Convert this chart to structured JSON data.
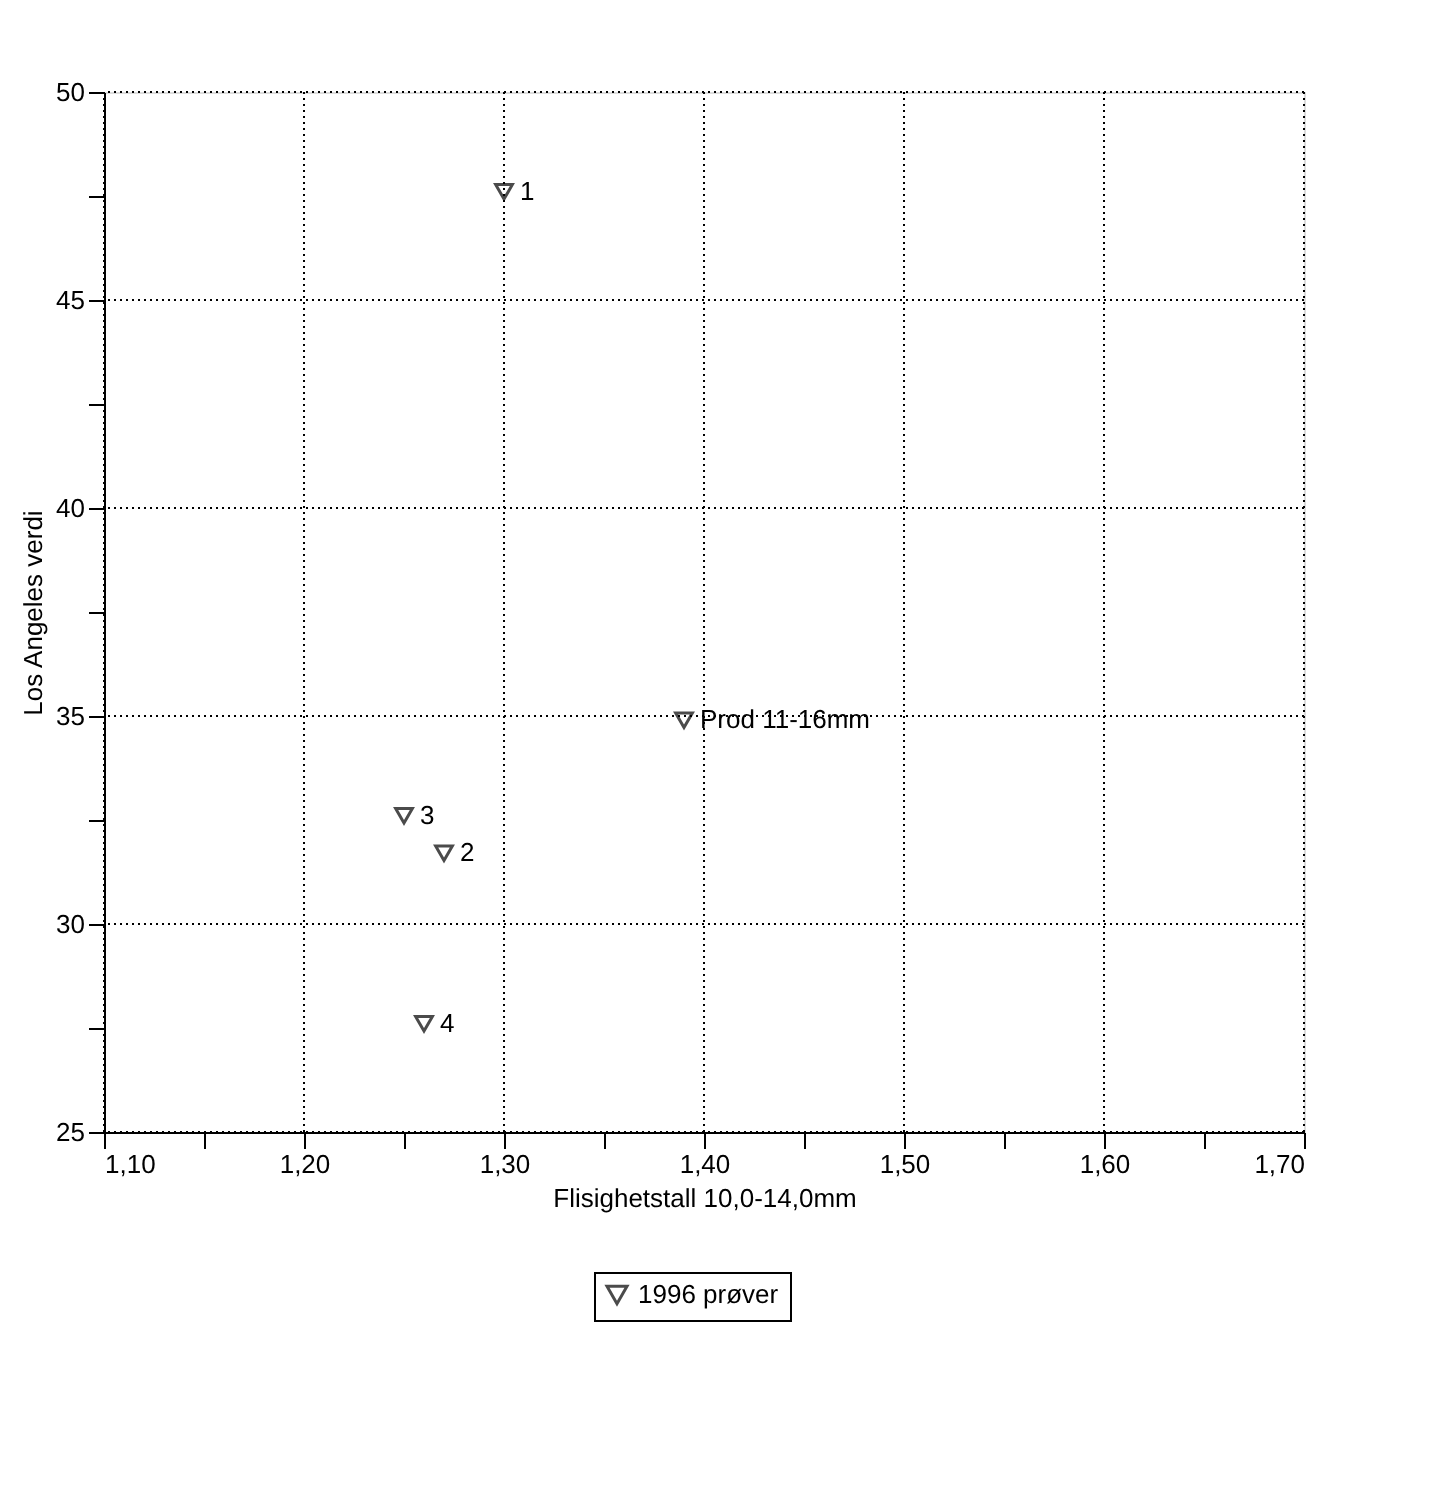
{
  "chart_data": {
    "type": "scatter",
    "xlabel": "Flisighetstall 10,0-14,0mm",
    "ylabel": "Los Angeles verdi",
    "x": [
      1.3,
      1.27,
      1.25,
      1.26,
      1.39
    ],
    "series": [
      {
        "name": "1996 prøver",
        "color": "#000000",
        "values": [
          47.6,
          31.7,
          32.6,
          27.6,
          34.9
        ]
      }
    ],
    "annotations": [
      {
        "text": "1",
        "x": 1.3,
        "y": 47.6
      },
      {
        "text": "2",
        "x": 1.27,
        "y": 31.7
      },
      {
        "text": "3",
        "x": 1.25,
        "y": 32.6
      },
      {
        "text": "4",
        "x": 1.26,
        "y": 27.6
      },
      {
        "text": "Prod 11-16mm",
        "x": 1.39,
        "y": 34.9
      }
    ],
    "xlim": [
      1.1,
      1.7
    ],
    "xticks": [
      {
        "value": 1.1,
        "label": "1,10"
      },
      {
        "value": 1.15,
        "label": null
      },
      {
        "value": 1.2,
        "label": "1,20"
      },
      {
        "value": 1.25,
        "label": null
      },
      {
        "value": 1.3,
        "label": "1,30"
      },
      {
        "value": 1.35,
        "label": null
      },
      {
        "value": 1.4,
        "label": "1,40"
      },
      {
        "value": 1.45,
        "label": null
      },
      {
        "value": 1.5,
        "label": "1,50"
      },
      {
        "value": 1.55,
        "label": null
      },
      {
        "value": 1.6,
        "label": "1,60"
      },
      {
        "value": 1.65,
        "label": null
      },
      {
        "value": 1.7,
        "label": "1,70"
      }
    ],
    "ylim": [
      25,
      50
    ],
    "yticks": [
      25,
      {
        "value": 27.5,
        "label": null
      },
      30,
      {
        "value": 32.5,
        "label": null
      },
      35,
      {
        "value": 37.5,
        "label": null
      },
      40,
      {
        "value": 42.5,
        "label": null
      },
      45,
      {
        "value": 47.5,
        "label": null
      },
      50
    ],
    "grid": true,
    "legend": "bottom",
    "marker": "triangle-down"
  }
}
